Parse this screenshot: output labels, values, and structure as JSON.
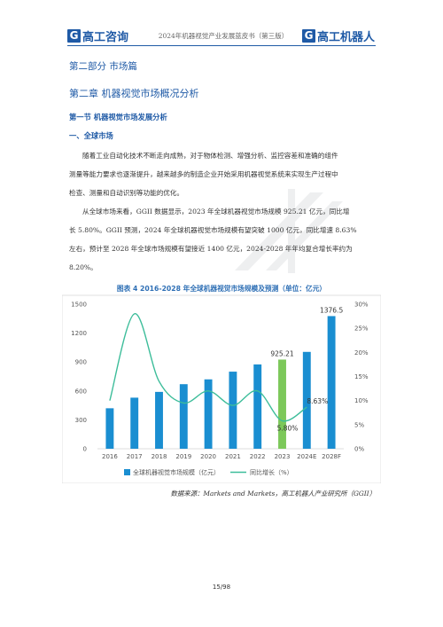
{
  "header": {
    "logo_left_mark": "G",
    "logo_left_text": "高工咨询",
    "doc_title": "2024年机器视觉产业发展蓝皮书（第三版）",
    "logo_right_mark": "G",
    "logo_right_text": "高工机器人",
    "accent_color": "#1f5aa6"
  },
  "headings": {
    "part": "第二部分  市场篇",
    "chapter": "第二章  机器视觉市场概况分析",
    "section": "第一节  机器视觉市场发展分析",
    "subsection": "一、全球市场"
  },
  "paragraph1": [
    "随着工业自动化技术不断走向成熟，对于物体检测、增强分析、监控容差和准确的组件",
    "测量等能力要求也逐渐提升，越来越多的制造企业开始采用机器视觉系统来实现生产过程中",
    "检查、测量和自动识别等功能的优化。"
  ],
  "paragraph2": [
    "从全球市场来看，GGII 数据显示，2023 年全球机器视觉市场规模 925.21 亿元，同比增",
    "长 5.80%。GGII 预测，2024 年全球机器视觉市场规模有望突破 1000 亿元，同比增速 8.63%",
    "左右，预计至 2028 年全球市场规模有望接近 1400 亿元，2024-2028 年年均复合增长率约为",
    "8.20%。"
  ],
  "chart_data": {
    "type": "bar",
    "title": "图表 4   2016-2028 年全球机器视觉市场规模及预测（单位：亿元）",
    "categories": [
      "2016",
      "2017",
      "2018",
      "2019",
      "2020",
      "2021",
      "2022",
      "2023",
      "2024E",
      "2028F"
    ],
    "series": [
      {
        "name": "全球机器视觉市场规模（亿元）",
        "type": "bar",
        "axis": "left",
        "color": "#1a8ed1",
        "values": [
          420,
          530,
          590,
          670,
          720,
          800,
          875,
          925.21,
          1005,
          1376.5
        ]
      },
      {
        "name": "同比增长（%）",
        "type": "line",
        "axis": "right",
        "color": "#3dbd9a",
        "values": [
          10.0,
          28.0,
          14.0,
          9.5,
          12.0,
          9.0,
          12.0,
          5.8,
          8.63,
          null
        ]
      }
    ],
    "highlight_index": 7,
    "highlight_color": "#7cc85a",
    "data_labels": [
      {
        "series": 0,
        "index": 7,
        "text": "925.21"
      },
      {
        "series": 0,
        "index": 9,
        "text": "1376.5"
      },
      {
        "series": 1,
        "index": 7,
        "text": "5.80%"
      },
      {
        "series": 1,
        "index": 8,
        "text": "8.63%"
      }
    ],
    "ylim_left": [
      0,
      1500
    ],
    "yticks_left": [
      "0",
      "300",
      "600",
      "900",
      "1200",
      "1500"
    ],
    "ylim_right": [
      0,
      30
    ],
    "yticks_right": [
      "0%",
      "5%",
      "10%",
      "15%",
      "20%",
      "25%",
      "30%"
    ],
    "legend_position": "bottom",
    "grid": false
  },
  "source": "数据来源：Markets and Markets，高工机器人产业研究所（GGII）",
  "page_number": "15/98"
}
